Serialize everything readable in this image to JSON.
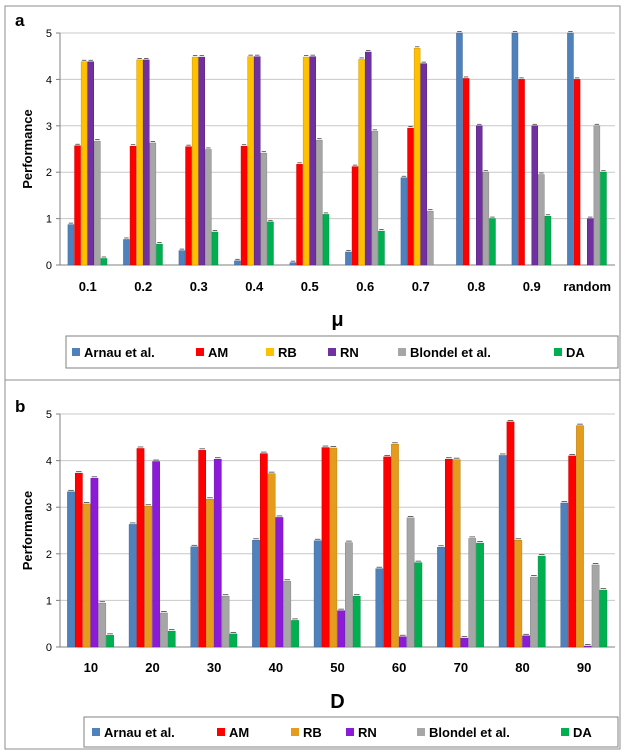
{
  "chart_data": [
    {
      "type": "bar",
      "panel_label": "a",
      "title": "",
      "xlabel": "μ",
      "ylabel": "Performance",
      "ylim": [
        0,
        5
      ],
      "yticks": [
        0,
        1,
        2,
        3,
        4,
        5
      ],
      "grid": true,
      "legend_position": "bottom",
      "categories": [
        "0.1",
        "0.2",
        "0.3",
        "0.4",
        "0.5",
        "0.6",
        "0.7",
        "0.8",
        "0.9",
        "random"
      ],
      "series": [
        {
          "name": "Arnau et al.",
          "color": "#4f81bd",
          "values": [
            0.87,
            0.55,
            0.31,
            0.09,
            0.05,
            0.28,
            1.88,
            5.0,
            5.0,
            5.0
          ]
        },
        {
          "name": "AM",
          "color": "#ff0000",
          "values": [
            2.57,
            2.56,
            2.55,
            2.56,
            2.17,
            2.12,
            2.95,
            4.02,
            4.0,
            4.0
          ]
        },
        {
          "name": "RB",
          "color": "#ffc000",
          "values": [
            4.38,
            4.42,
            4.48,
            4.49,
            4.48,
            4.43,
            4.67,
            0,
            0,
            0
          ]
        },
        {
          "name": "RN",
          "color": "#7030a0",
          "values": [
            4.38,
            4.42,
            4.48,
            4.49,
            4.49,
            4.59,
            4.34,
            3.0,
            3.0,
            1.0
          ]
        },
        {
          "name": "Blondel et al.",
          "color": "#a6a6a6",
          "values": [
            2.67,
            2.63,
            2.49,
            2.41,
            2.69,
            2.88,
            1.16,
            2.0,
            1.95,
            3.0
          ]
        },
        {
          "name": "DA",
          "color": "#00b050",
          "values": [
            0.14,
            0.45,
            0.71,
            0.93,
            1.09,
            0.73,
            0,
            1.0,
            1.05,
            2.0
          ]
        }
      ]
    },
    {
      "type": "bar",
      "panel_label": "b",
      "title": "",
      "xlabel": "D",
      "ylabel": "Performance",
      "ylim": [
        0,
        5
      ],
      "yticks": [
        0,
        1,
        2,
        3,
        4,
        5
      ],
      "grid": true,
      "legend_position": "bottom",
      "categories": [
        "10",
        "20",
        "30",
        "40",
        "50",
        "60",
        "70",
        "80",
        "90"
      ],
      "series": [
        {
          "name": "Arnau et al.",
          "color": "#4f81bd",
          "values": [
            3.33,
            2.63,
            2.15,
            2.29,
            2.28,
            1.68,
            2.14,
            4.11,
            3.09
          ]
        },
        {
          "name": "AM",
          "color": "#ff0000",
          "values": [
            3.73,
            4.26,
            4.22,
            4.15,
            4.28,
            4.08,
            4.03,
            4.83,
            4.1
          ]
        },
        {
          "name": "RB",
          "color": "#e59c1c",
          "values": [
            3.07,
            3.02,
            3.17,
            3.72,
            4.27,
            4.35,
            4.02,
            2.29,
            4.75
          ]
        },
        {
          "name": "RN",
          "color": "#8b1bd6",
          "values": [
            3.62,
            3.98,
            4.03,
            2.78,
            0.78,
            0.22,
            0.19,
            0.24,
            0.02
          ]
        },
        {
          "name": "Blondel et al.",
          "color": "#a6a6a6",
          "values": [
            0.94,
            0.73,
            1.09,
            1.41,
            2.24,
            2.77,
            2.33,
            1.5,
            1.76
          ]
        },
        {
          "name": "DA",
          "color": "#00b050",
          "values": [
            0.25,
            0.34,
            0.28,
            0.57,
            1.09,
            1.81,
            2.23,
            1.95,
            1.22
          ]
        }
      ]
    }
  ]
}
